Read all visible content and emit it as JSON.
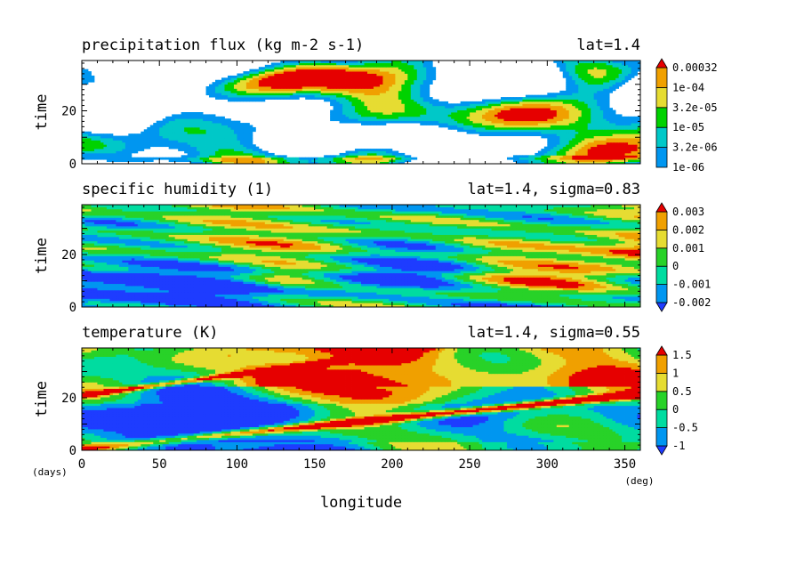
{
  "figure": {
    "xlabel": "longitude",
    "x_unit": "(deg)",
    "y_unit": "(days)"
  },
  "chart_data": [
    {
      "type": "heatmap",
      "title": "precipitation flux (kg m-2 s-1)",
      "subtitle": "lat=1.4",
      "ylabel": "time",
      "xlim": [
        0,
        360
      ],
      "ylim": [
        0,
        39
      ],
      "xticks": [
        0,
        50,
        100,
        150,
        200,
        250,
        300,
        350
      ],
      "yticks": [
        0,
        20
      ],
      "colorbar": {
        "labels": [
          "1e-06",
          "3.2e-06",
          "1e-05",
          "3.2e-05",
          "1e-04",
          "0.00032"
        ],
        "colors": [
          "#0096f0",
          "#00c8c8",
          "#00d200",
          "#e6dc32",
          "#f0a000",
          "#e60000"
        ],
        "triangle_bottom": false,
        "triangle_top": true
      }
    },
    {
      "type": "heatmap",
      "title": "specific humidity (1)",
      "subtitle": "lat=1.4, sigma=0.83",
      "ylabel": "time",
      "xlim": [
        0,
        360
      ],
      "ylim": [
        0,
        39
      ],
      "xticks": [
        0,
        50,
        100,
        150,
        200,
        250,
        300,
        350
      ],
      "yticks": [
        0,
        20
      ],
      "colorbar": {
        "labels": [
          "-0.002",
          "-0.001",
          "0",
          "0.001",
          "0.002",
          "0.003"
        ],
        "colors": [
          "#1e3cff",
          "#0096f0",
          "#00dca0",
          "#28d228",
          "#e6dc32",
          "#f0a000",
          "#e60000"
        ],
        "triangle_bottom": true,
        "triangle_top": true
      }
    },
    {
      "type": "heatmap",
      "title": "temperature (K)",
      "subtitle": "lat=1.4, sigma=0.55",
      "ylabel": "time",
      "xlim": [
        0,
        360
      ],
      "ylim": [
        0,
        39
      ],
      "xticks": [
        0,
        50,
        100,
        150,
        200,
        250,
        300,
        350
      ],
      "yticks": [
        0,
        20
      ],
      "colorbar": {
        "labels": [
          "-1",
          "-0.5",
          "0",
          "0.5",
          "1",
          "1.5"
        ],
        "colors": [
          "#1e3cff",
          "#0096f0",
          "#00dca0",
          "#28d228",
          "#e6dc32",
          "#f0a000",
          "#e60000"
        ],
        "triangle_bottom": true,
        "triangle_top": true
      }
    }
  ]
}
